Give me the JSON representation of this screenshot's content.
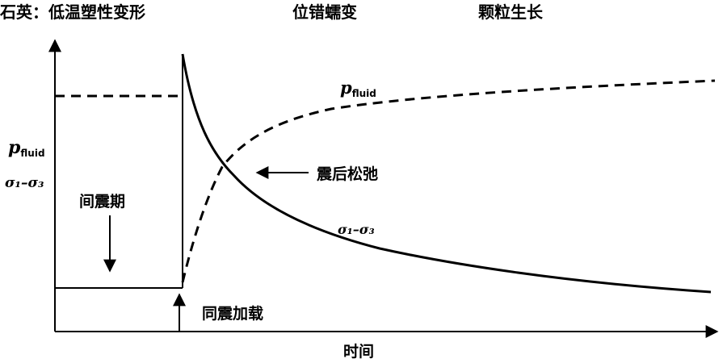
{
  "header": {
    "stage_1": "石英：低温塑性变形",
    "stage_2": "位错蠕变",
    "stage_3": "颗粒生长"
  },
  "axes": {
    "y_label_p": "p",
    "y_label_p_sub": "fluid",
    "y_label_sigma": "σ₁–σ₃",
    "x_label": "时间"
  },
  "annotations": {
    "interseismic": "间震期",
    "coseismic_loading": "同震加载",
    "postseismic_relaxation": "震后松弛",
    "curve_p_label": "p",
    "curve_p_sub": "fluid",
    "curve_sigma_label": "σ₁–σ₃"
  }
}
